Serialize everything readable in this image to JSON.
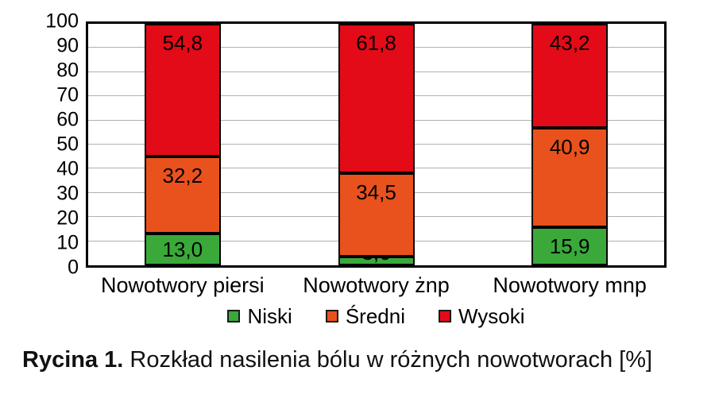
{
  "chart_data": {
    "type": "bar",
    "stacked": true,
    "title": "",
    "xlabel": "",
    "ylabel": "",
    "ylim": [
      0,
      100
    ],
    "ytick_step": 10,
    "yticks": [
      0,
      10,
      20,
      30,
      40,
      50,
      60,
      70,
      80,
      90,
      100
    ],
    "grid": true,
    "legend_position": "bottom",
    "decimal_separator": ",",
    "categories": [
      "Nowotwory piersi",
      "Nowotwory żnp",
      "Nowotwory mnp"
    ],
    "series": [
      {
        "name": "Niski",
        "color": "#3aa93a",
        "values": [
          13.0,
          3.6,
          15.9
        ]
      },
      {
        "name": "Średni",
        "color": "#e9521c",
        "values": [
          32.2,
          34.5,
          40.9
        ]
      },
      {
        "name": "Wysoki",
        "color": "#e30b17",
        "values": [
          54.8,
          61.8,
          43.2
        ]
      }
    ]
  },
  "caption": {
    "prefix": "Rycina 1.",
    "text": " Rozkład nasilenia bólu w różnych nowotworach [%]"
  },
  "colors": {
    "low": "#3aa93a",
    "medium": "#e9521c",
    "high": "#e30b17",
    "gridline": "#b0b0b0",
    "border": "#000000",
    "background": "#ffffff"
  }
}
